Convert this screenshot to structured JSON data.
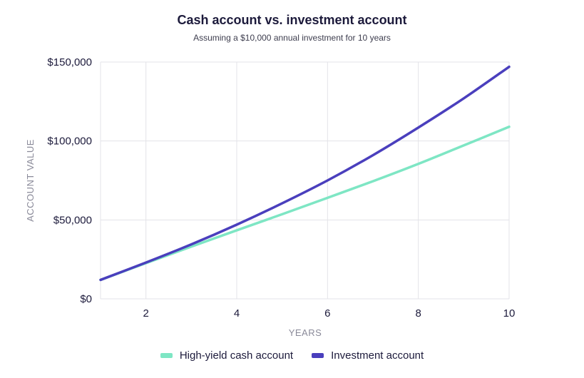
{
  "colors": {
    "cash": "#7ee6c4",
    "investment": "#4a3fbd",
    "grid": "#e3e3e8"
  },
  "chart_data": {
    "type": "line",
    "title": "Cash account vs. investment account",
    "subtitle": "Assuming a $10,000 annual investment for 10 years",
    "xlabel": "YEARS",
    "ylabel": "ACCOUNT VALUE",
    "xlim": [
      1,
      10
    ],
    "ylim": [
      0,
      150000
    ],
    "x_ticks": [
      2,
      4,
      6,
      8,
      10
    ],
    "y_ticks": [
      0,
      50000,
      100000,
      150000
    ],
    "y_tick_labels": [
      "$0",
      "$50,000",
      "$100,000",
      "$150,000"
    ],
    "grid": true,
    "legend_position": "bottom-center",
    "x": [
      1,
      2,
      3,
      4,
      5,
      6,
      7,
      8,
      9,
      10
    ],
    "series": [
      {
        "name": "High-yield cash account",
        "color_key": "cash",
        "values": [
          12000,
          22600,
          33100,
          43400,
          53600,
          64000,
          74500,
          85500,
          97200,
          109000
        ]
      },
      {
        "name": "Investment account",
        "color_key": "investment",
        "values": [
          12000,
          23000,
          34500,
          47000,
          60500,
          75000,
          91000,
          108500,
          127000,
          147000
        ]
      }
    ]
  }
}
